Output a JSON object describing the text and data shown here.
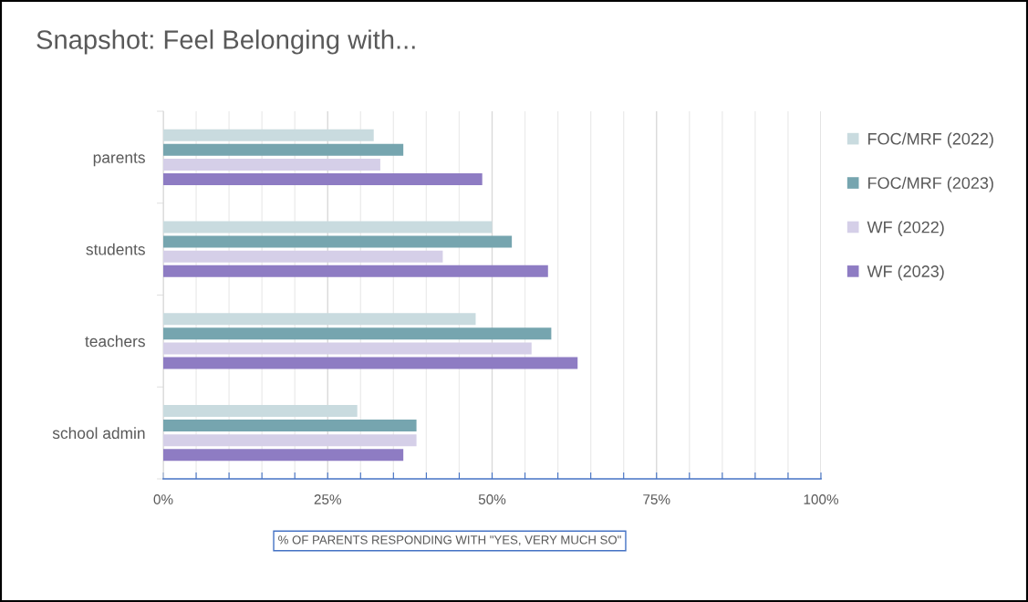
{
  "chart_data": {
    "type": "bar",
    "orientation": "horizontal",
    "title": "Snapshot: Feel Belonging with...",
    "xlabel": "% OF PARENTS RESPONDING WITH \"YES, VERY MUCH SO\"",
    "categories": [
      "parents",
      "students",
      "teachers",
      "school admin"
    ],
    "series": [
      {
        "name": "FOC/MRF (2022)",
        "color": "#c9dbdf",
        "values": [
          32,
          50,
          47.5,
          29.5
        ]
      },
      {
        "name": "FOC/MRF (2023)",
        "color": "#76a5af",
        "values": [
          36.5,
          53,
          59,
          38.5
        ]
      },
      {
        "name": "WF (2022)",
        "color": "#d5cfe8",
        "values": [
          33,
          42.5,
          56,
          38.5
        ]
      },
      {
        "name": "WF (2023)",
        "color": "#8e7cc3",
        "values": [
          48.5,
          58.5,
          63,
          36.5
        ]
      }
    ],
    "xlim": [
      0,
      100
    ],
    "xticks": [
      {
        "value": 0,
        "label": "0%"
      },
      {
        "value": 5,
        "label": null
      },
      {
        "value": 10,
        "label": null
      },
      {
        "value": 15,
        "label": null
      },
      {
        "value": 20,
        "label": null
      },
      {
        "value": 25,
        "label": "25%"
      },
      {
        "value": 30,
        "label": null
      },
      {
        "value": 35,
        "label": null
      },
      {
        "value": 40,
        "label": null
      },
      {
        "value": 45,
        "label": null
      },
      {
        "value": 50,
        "label": "50%"
      },
      {
        "value": 55,
        "label": null
      },
      {
        "value": 60,
        "label": null
      },
      {
        "value": 65,
        "label": null
      },
      {
        "value": 70,
        "label": null
      },
      {
        "value": 75,
        "label": "75%"
      },
      {
        "value": 80,
        "label": null
      },
      {
        "value": 85,
        "label": null
      },
      {
        "value": 90,
        "label": null
      },
      {
        "value": 95,
        "label": null
      },
      {
        "value": 100,
        "label": "100%"
      }
    ],
    "grid": "x",
    "legend": "right"
  }
}
